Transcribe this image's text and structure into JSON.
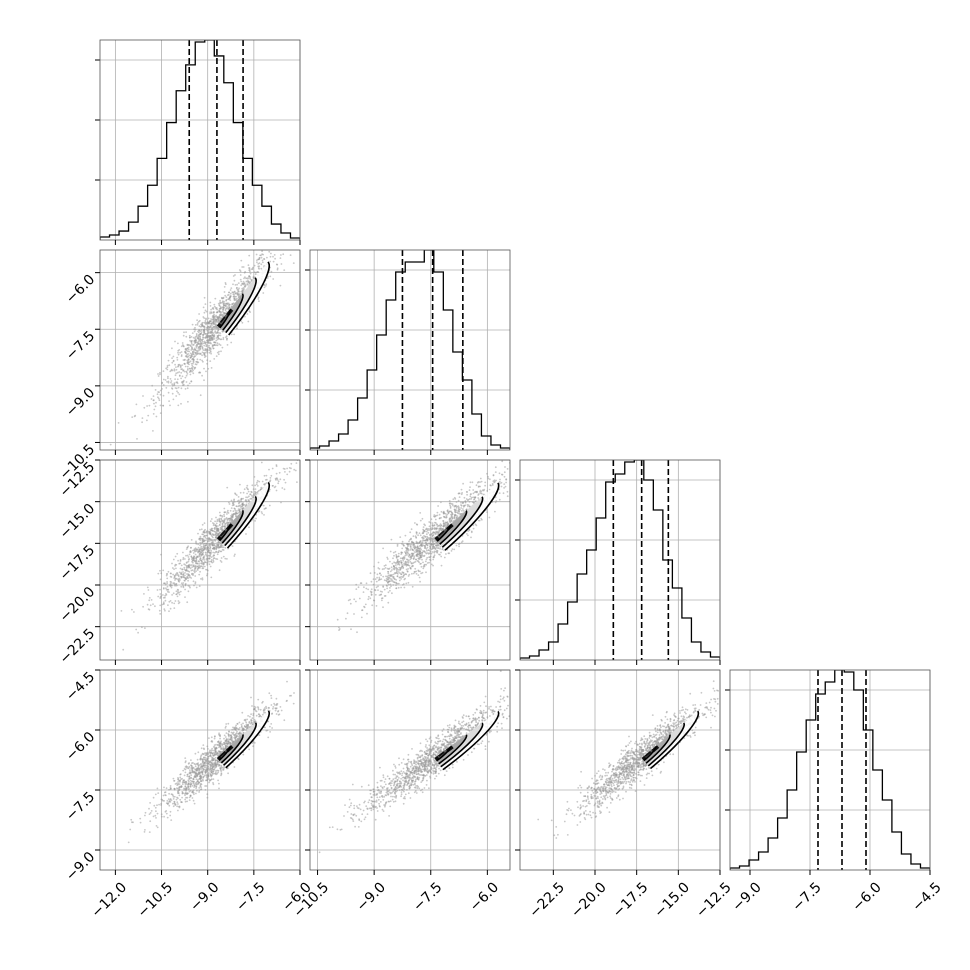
{
  "chart_data": {
    "type": "corner",
    "title": "",
    "grid": true,
    "parameters": [
      {
        "label": "",
        "mean": -8.7,
        "sd": 0.85,
        "range": [
          -12.5,
          -6.0
        ],
        "quantiles": [
          -9.6,
          -8.7,
          -7.85
        ],
        "ticks": [
          {
            "v": -12.0,
            "label": "−12.0"
          },
          {
            "v": -10.5,
            "label": "−10.5"
          },
          {
            "v": -9.0,
            "label": "−9.0"
          },
          {
            "v": -7.5,
            "label": "−7.5"
          },
          {
            "v": -6.0,
            "label": "−6.0"
          }
        ]
      },
      {
        "label": "",
        "mean": -7.4,
        "sd": 0.85,
        "range": [
          -10.7,
          -5.4
        ],
        "quantiles": [
          -8.25,
          -7.45,
          -6.65
        ],
        "ticks": [
          {
            "v": -10.5,
            "label": "−10.5"
          },
          {
            "v": -9.0,
            "label": "−9.0"
          },
          {
            "v": -7.5,
            "label": "−7.5"
          },
          {
            "v": -6.0,
            "label": "−6.0"
          }
        ]
      },
      {
        "label": "",
        "mean": -17.2,
        "sd": 1.7,
        "range": [
          -24.5,
          -12.5
        ],
        "quantiles": [
          -18.9,
          -17.2,
          -15.6
        ],
        "ticks": [
          {
            "v": -22.5,
            "label": "−22.5"
          },
          {
            "v": -20.0,
            "label": "−20.0"
          },
          {
            "v": -17.5,
            "label": "−17.5"
          },
          {
            "v": -15.0,
            "label": "−15.0"
          },
          {
            "v": -12.5,
            "label": "−12.5"
          }
        ]
      },
      {
        "label": "",
        "mean": -6.7,
        "sd": 0.6,
        "range": [
          -9.5,
          -4.5
        ],
        "quantiles": [
          -7.3,
          -6.7,
          -6.1
        ],
        "ticks": [
          {
            "v": -9.0,
            "label": "−9.0"
          },
          {
            "v": -7.5,
            "label": "−7.5"
          },
          {
            "v": -6.0,
            "label": "−6.0"
          },
          {
            "v": -4.5,
            "label": "−4.5"
          }
        ]
      }
    ],
    "histogram_counts": [
      [
        3,
        5,
        9,
        18,
        34,
        55,
        82,
        118,
        150,
        176,
        199,
        201,
        185,
        158,
        118,
        82,
        55,
        34,
        16,
        7,
        2
      ],
      [
        2,
        4,
        9,
        16,
        30,
        52,
        80,
        115,
        150,
        178,
        188,
        188,
        200,
        178,
        140,
        98,
        70,
        36,
        14,
        5,
        2
      ],
      [
        2,
        4,
        10,
        18,
        36,
        58,
        86,
        110,
        142,
        178,
        186,
        198,
        200,
        180,
        150,
        100,
        72,
        42,
        18,
        8,
        3
      ],
      [
        2,
        4,
        10,
        18,
        32,
        52,
        80,
        118,
        150,
        176,
        188,
        200,
        198,
        180,
        140,
        100,
        70,
        38,
        16,
        6,
        2
      ]
    ],
    "correlation": 0.93
  }
}
